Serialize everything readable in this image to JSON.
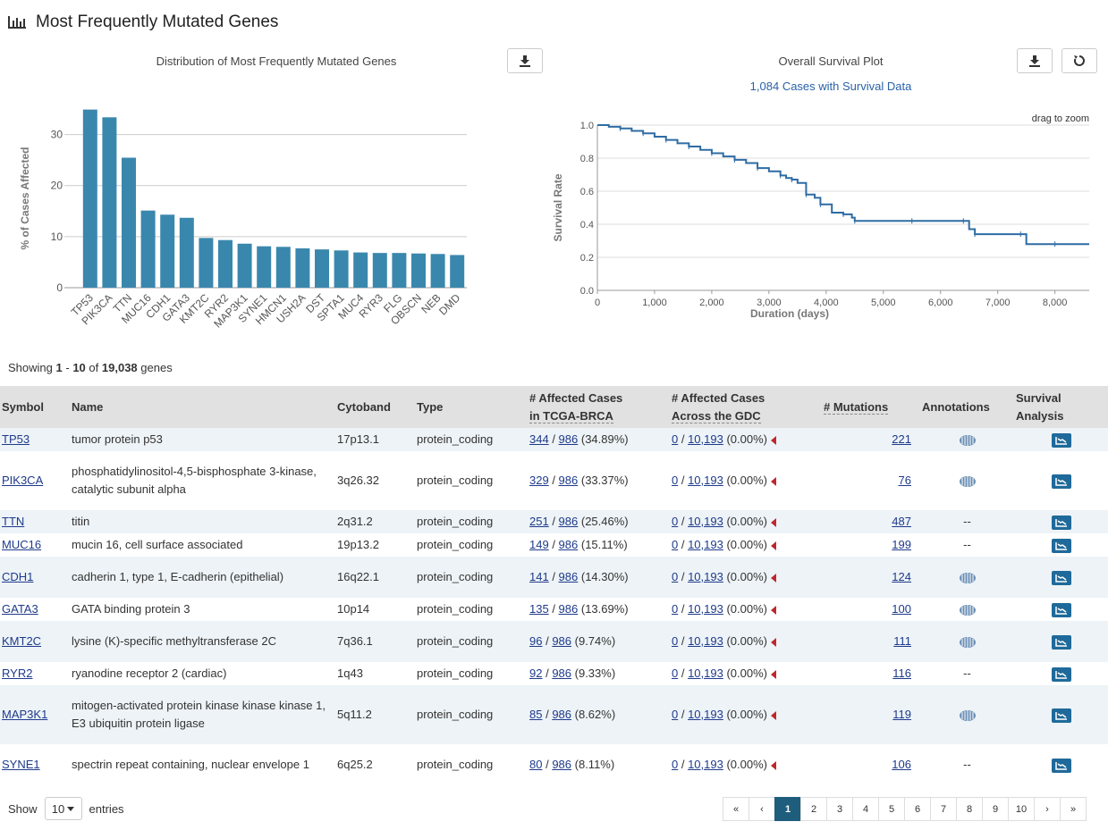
{
  "header": {
    "title": "Most Frequently Mutated Genes",
    "icon": "bar-chart-icon"
  },
  "bar_panel": {
    "title": "Distribution of Most Frequently Mutated Genes",
    "download_icon": "download-icon"
  },
  "survival_panel": {
    "title": "Overall Survival Plot",
    "subtitle": "1,084 Cases with Survival Data",
    "zoom_hint": "drag to zoom",
    "download_icon": "download-icon",
    "reset_icon": "reset-icon"
  },
  "chart_data": [
    {
      "type": "bar",
      "title": "Distribution of Most Frequently Mutated Genes",
      "ylabel": "% of Cases Affected",
      "xlabel": "",
      "ylim": [
        0,
        35
      ],
      "yticks": [
        0,
        10,
        20,
        30
      ],
      "grid": true,
      "color": "#3a87ad",
      "categories": [
        "TP53",
        "PIK3CA",
        "TTN",
        "MUC16",
        "CDH1",
        "GATA3",
        "KMT2C",
        "RYR2",
        "MAP3K1",
        "SYNE1",
        "HMCN1",
        "USH2A",
        "DST",
        "SPTA1",
        "MUC4",
        "RYR3",
        "FLG",
        "OBSCN",
        "NEB",
        "DMD"
      ],
      "values": [
        34.89,
        33.37,
        25.46,
        15.11,
        14.3,
        13.69,
        9.74,
        9.33,
        8.62,
        8.11,
        8.0,
        7.7,
        7.5,
        7.3,
        6.9,
        6.8,
        6.8,
        6.7,
        6.6,
        6.4
      ]
    },
    {
      "type": "line",
      "title": "Overall Survival Plot",
      "xlabel": "Duration (days)",
      "ylabel": "Survival Rate",
      "xlim": [
        0,
        8600
      ],
      "ylim": [
        0,
        1.0
      ],
      "xticks": [
        "0",
        "1,000",
        "2,000",
        "3,000",
        "4,000",
        "5,000",
        "6,000",
        "7,000",
        "8,000"
      ],
      "xtick_values": [
        0,
        1000,
        2000,
        3000,
        4000,
        5000,
        6000,
        7000,
        8000
      ],
      "yticks": [
        "0.0",
        "0.2",
        "0.4",
        "0.6",
        "0.8",
        "1.0"
      ],
      "ytick_values": [
        0,
        0.2,
        0.4,
        0.6,
        0.8,
        1.0
      ],
      "grid": true,
      "color": "#2e6ca4",
      "series": [
        {
          "x": [
            0,
            200,
            400,
            600,
            800,
            1000,
            1200,
            1400,
            1600,
            1800,
            2000,
            2200,
            2400,
            2600,
            2800,
            3000,
            3200,
            3300,
            3400,
            3500,
            3650,
            3800,
            3900,
            4100,
            4300,
            4450,
            4500,
            5000,
            5500,
            6000,
            6400,
            6500,
            6600,
            7000,
            7400,
            7500,
            8000,
            8600
          ],
          "y": [
            1.0,
            0.99,
            0.98,
            0.965,
            0.95,
            0.93,
            0.91,
            0.89,
            0.87,
            0.85,
            0.83,
            0.81,
            0.79,
            0.77,
            0.74,
            0.72,
            0.695,
            0.68,
            0.67,
            0.65,
            0.58,
            0.56,
            0.52,
            0.47,
            0.46,
            0.44,
            0.42,
            0.42,
            0.42,
            0.42,
            0.42,
            0.37,
            0.34,
            0.34,
            0.34,
            0.28,
            0.28,
            0.28
          ]
        }
      ]
    }
  ],
  "showing": {
    "prefix": "Showing",
    "from": "1",
    "dash": "-",
    "to": "10",
    "of": "of",
    "total": "19,038",
    "suffix": "genes"
  },
  "table": {
    "headers": {
      "symbol": "Symbol",
      "name": "Name",
      "cytoband": "Cytoband",
      "type": "Type",
      "affected_project_1": "# Affected Cases",
      "affected_project_2": "in TCGA-BRCA",
      "affected_gdc_1": "# Affected Cases",
      "affected_gdc_2": "Across the GDC",
      "mutations": "# Mutations",
      "annotations": "Annotations",
      "survival_1": "Survival",
      "survival_2": "Analysis"
    },
    "rows": [
      {
        "symbol": "TP53",
        "name": "tumor protein p53",
        "cytoband": "17p13.1",
        "type": "protein_coding",
        "cases": "344",
        "total": "986",
        "pct": "(34.89%)",
        "gdc_cases": "0",
        "gdc_total": "10,193",
        "gdc_pct": "(0.00%)",
        "mutations": "221",
        "annotation": "icon"
      },
      {
        "symbol": "PIK3CA",
        "name": "phosphatidylinositol-4,5-bisphosphate 3-kinase, catalytic subunit alpha",
        "cytoband": "3q26.32",
        "type": "protein_coding",
        "cases": "329",
        "total": "986",
        "pct": "(33.37%)",
        "gdc_cases": "0",
        "gdc_total": "10,193",
        "gdc_pct": "(0.00%)",
        "mutations": "76",
        "annotation": "icon"
      },
      {
        "symbol": "TTN",
        "name": "titin",
        "cytoband": "2q31.2",
        "type": "protein_coding",
        "cases": "251",
        "total": "986",
        "pct": "(25.46%)",
        "gdc_cases": "0",
        "gdc_total": "10,193",
        "gdc_pct": "(0.00%)",
        "mutations": "487",
        "annotation": "--"
      },
      {
        "symbol": "MUC16",
        "name": "mucin 16, cell surface associated",
        "cytoband": "19p13.2",
        "type": "protein_coding",
        "cases": "149",
        "total": "986",
        "pct": "(15.11%)",
        "gdc_cases": "0",
        "gdc_total": "10,193",
        "gdc_pct": "(0.00%)",
        "mutations": "199",
        "annotation": "--"
      },
      {
        "symbol": "CDH1",
        "name": "cadherin 1, type 1, E-cadherin (epithelial)",
        "cytoband": "16q22.1",
        "type": "protein_coding",
        "cases": "141",
        "total": "986",
        "pct": "(14.30%)",
        "gdc_cases": "0",
        "gdc_total": "10,193",
        "gdc_pct": "(0.00%)",
        "mutations": "124",
        "annotation": "icon"
      },
      {
        "symbol": "GATA3",
        "name": "GATA binding protein 3",
        "cytoband": "10p14",
        "type": "protein_coding",
        "cases": "135",
        "total": "986",
        "pct": "(13.69%)",
        "gdc_cases": "0",
        "gdc_total": "10,193",
        "gdc_pct": "(0.00%)",
        "mutations": "100",
        "annotation": "icon"
      },
      {
        "symbol": "KMT2C",
        "name": "lysine (K)-specific methyltransferase 2C",
        "cytoband": "7q36.1",
        "type": "protein_coding",
        "cases": "96",
        "total": "986",
        "pct": "(9.74%)",
        "gdc_cases": "0",
        "gdc_total": "10,193",
        "gdc_pct": "(0.00%)",
        "mutations": "111",
        "annotation": "icon"
      },
      {
        "symbol": "RYR2",
        "name": "ryanodine receptor 2 (cardiac)",
        "cytoband": "1q43",
        "type": "protein_coding",
        "cases": "92",
        "total": "986",
        "pct": "(9.33%)",
        "gdc_cases": "0",
        "gdc_total": "10,193",
        "gdc_pct": "(0.00%)",
        "mutations": "116",
        "annotation": "--"
      },
      {
        "symbol": "MAP3K1",
        "name": "mitogen-activated protein kinase kinase kinase 1, E3 ubiquitin protein ligase",
        "cytoband": "5q11.2",
        "type": "protein_coding",
        "cases": "85",
        "total": "986",
        "pct": "(8.62%)",
        "gdc_cases": "0",
        "gdc_total": "10,193",
        "gdc_pct": "(0.00%)",
        "mutations": "119",
        "annotation": "icon"
      },
      {
        "symbol": "SYNE1",
        "name": "spectrin repeat containing, nuclear envelope 1",
        "cytoband": "6q25.2",
        "type": "protein_coding",
        "cases": "80",
        "total": "986",
        "pct": "(8.11%)",
        "gdc_cases": "0",
        "gdc_total": "10,193",
        "gdc_pct": "(0.00%)",
        "mutations": "106",
        "annotation": "--"
      }
    ]
  },
  "footer": {
    "show_label": "Show",
    "page_size": "10",
    "entries_label": "entries",
    "pages": [
      "«",
      "‹",
      "1",
      "2",
      "3",
      "4",
      "5",
      "6",
      "7",
      "8",
      "9",
      "10",
      "›",
      "»"
    ],
    "active_page": "1"
  }
}
